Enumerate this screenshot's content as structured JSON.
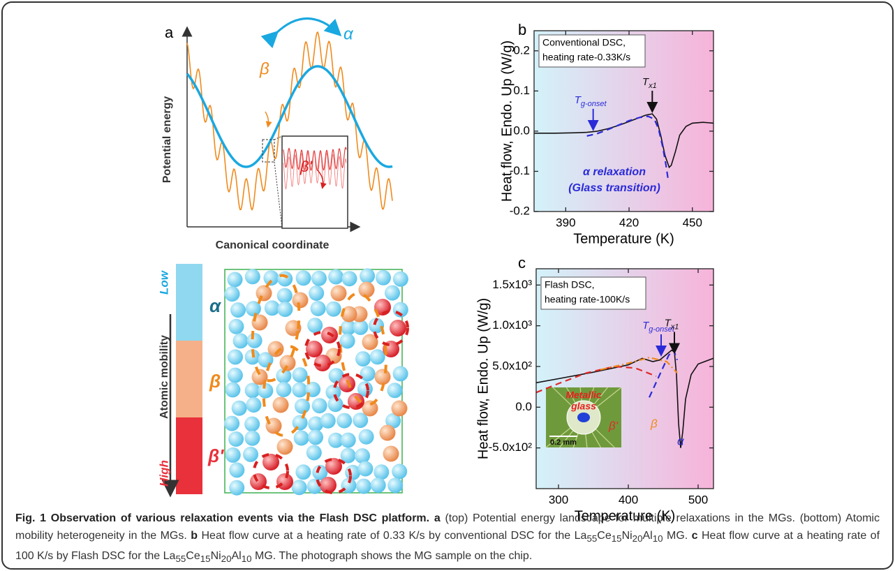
{
  "panel_a": {
    "label": "a",
    "top": {
      "alpha": "α",
      "beta": "β",
      "beta_prime": "β'",
      "ylabel": "Potential energy",
      "xlabel": "Canonical coordinate"
    },
    "bottom": {
      "low": "Low",
      "high": "High",
      "alpha": "α",
      "beta": "β",
      "beta_prime": "β'",
      "axis_label": "Atomic mobility"
    }
  },
  "chart_data": [
    {
      "type": "line",
      "panel_label": "b",
      "xlabel": "Temperature (K)",
      "ylabel": "Heat flow, Endo. Up (W/g)",
      "xlim": [
        375,
        460
      ],
      "ylim": [
        -0.2,
        0.25
      ],
      "xticks": [
        390,
        420,
        450
      ],
      "yticks": [
        -0.2,
        -0.1,
        {
          "value": 0,
          "label": "0.0"
        },
        0.1,
        0.2
      ],
      "background": [
        "#d3f2fa",
        "#f7b3da"
      ],
      "legend_box": [
        "Conventional DSC,",
        "heating rate-0.33K/s"
      ],
      "series": [
        {
          "color": "#111111",
          "dash": "none",
          "x": [
            375,
            385,
            395,
            400,
            405,
            410,
            415,
            420,
            425,
            428,
            431,
            433,
            435,
            437,
            439,
            440,
            442,
            444,
            447,
            450,
            455,
            460
          ],
          "values": [
            -0.005,
            -0.005,
            -0.004,
            -0.003,
            0.0,
            0.006,
            0.014,
            0.024,
            0.034,
            0.04,
            0.043,
            0.03,
            -0.01,
            -0.06,
            -0.09,
            -0.085,
            -0.05,
            -0.01,
            0.012,
            0.02,
            0.022,
            0.02
          ]
        },
        {
          "color": "#2a2ad8",
          "dash": "9,6",
          "x": [
            400,
            405,
            410,
            415,
            420,
            425,
            429,
            432,
            434,
            436,
            437.5,
            438.5
          ],
          "values": [
            -0.012,
            -0.006,
            0.004,
            0.015,
            0.026,
            0.034,
            0.037,
            0.03,
            0.005,
            -0.04,
            -0.085,
            -0.12
          ]
        }
      ],
      "annotations": [
        {
          "symbol": "T",
          "subscript": "g-onset",
          "x": 403,
          "y": 0.0,
          "color": "#2a2ad8"
        },
        {
          "symbol": "T",
          "subscript": "x1",
          "x": 431,
          "y": 0.045,
          "color": "#111111"
        }
      ],
      "notes": [
        "α relaxation",
        "(Glass transition)"
      ]
    },
    {
      "type": "line",
      "panel_label": "c",
      "xlabel": "Temperature (K)",
      "ylabel": "Heat flow, Endo. Up (W/g)",
      "xlim": [
        268,
        522
      ],
      "ylim": [
        -1000,
        1700
      ],
      "xticks": [
        300,
        400,
        500
      ],
      "yticks": [
        {
          "value": -500,
          "label": "-5.0x10²"
        },
        {
          "value": 0,
          "label": "0.0"
        },
        {
          "value": 500,
          "label": "5.0x10²"
        },
        {
          "value": 1000,
          "label": "1.0x10³"
        },
        {
          "value": 1500,
          "label": "1.5x10³"
        }
      ],
      "background": [
        "#d3f2fa",
        "#f7b3da"
      ],
      "legend_box": [
        "Flash DSC,",
        "heating rate-100K/s"
      ],
      "series": [
        {
          "color": "#111111",
          "dash": "none",
          "x": [
            268,
            300,
            350,
            400,
            420,
            435,
            445,
            455,
            462,
            466,
            469,
            472,
            475,
            478,
            482,
            490,
            500,
            522
          ],
          "values": [
            300,
            350,
            430,
            520,
            600,
            560,
            580,
            650,
            700,
            680,
            400,
            -200,
            -500,
            -300,
            100,
            400,
            530,
            600
          ]
        },
        {
          "name": "β'",
          "color": "#e02a2a",
          "dash": "9,6",
          "x": [
            268,
            300,
            340,
            380,
            410,
            440
          ],
          "values": [
            180,
            290,
            420,
            500,
            480,
            380
          ]
        },
        {
          "name": "β",
          "color": "#f08a1c",
          "dash": "9,4,2,4",
          "x": [
            360,
            400,
            430,
            455,
            470
          ],
          "values": [
            460,
            540,
            610,
            560,
            420
          ]
        },
        {
          "name": "α",
          "color": "#2a2ad8",
          "dash": "9,6",
          "x": [
            430,
            445,
            458,
            465,
            470
          ],
          "values": [
            120,
            400,
            640,
            700,
            580
          ]
        }
      ],
      "annotations": [
        {
          "symbol": "T",
          "subscript": "g-onset",
          "x": 447,
          "y": 620,
          "color": "#2a2ad8"
        },
        {
          "symbol": "T",
          "subscript": "x1",
          "x": 466,
          "y": 650,
          "color": "#111111"
        }
      ],
      "inset": {
        "title": [
          "Metallic",
          "glass"
        ],
        "scale": "0.2 mm"
      }
    }
  ],
  "caption": {
    "title": "Fig. 1 Observation of various relaxation events via the Flash DSC platform.",
    "a_label": "a",
    "a_text": "(top) Potential energy landscape for multiple relaxations in the MGs. (bottom) Atomic mobility heterogeneity in the MGs.",
    "b_label": "b",
    "b_text": "Heat flow curve at a heating rate of 0.33 K/s by conventional DSC for the",
    "c_label": "c",
    "c_text": "Heat flow curve at a heating rate of 100 K/s by Flash DSC for the",
    "formula": [
      {
        "el": "La",
        "n": "55"
      },
      {
        "el": "Ce",
        "n": "15"
      },
      {
        "el": "Ni",
        "n": "20"
      },
      {
        "el": "Al",
        "n": "10"
      }
    ],
    "mg": "MG.",
    "c_tail": "The photograph shows the MG sample on the chip."
  }
}
